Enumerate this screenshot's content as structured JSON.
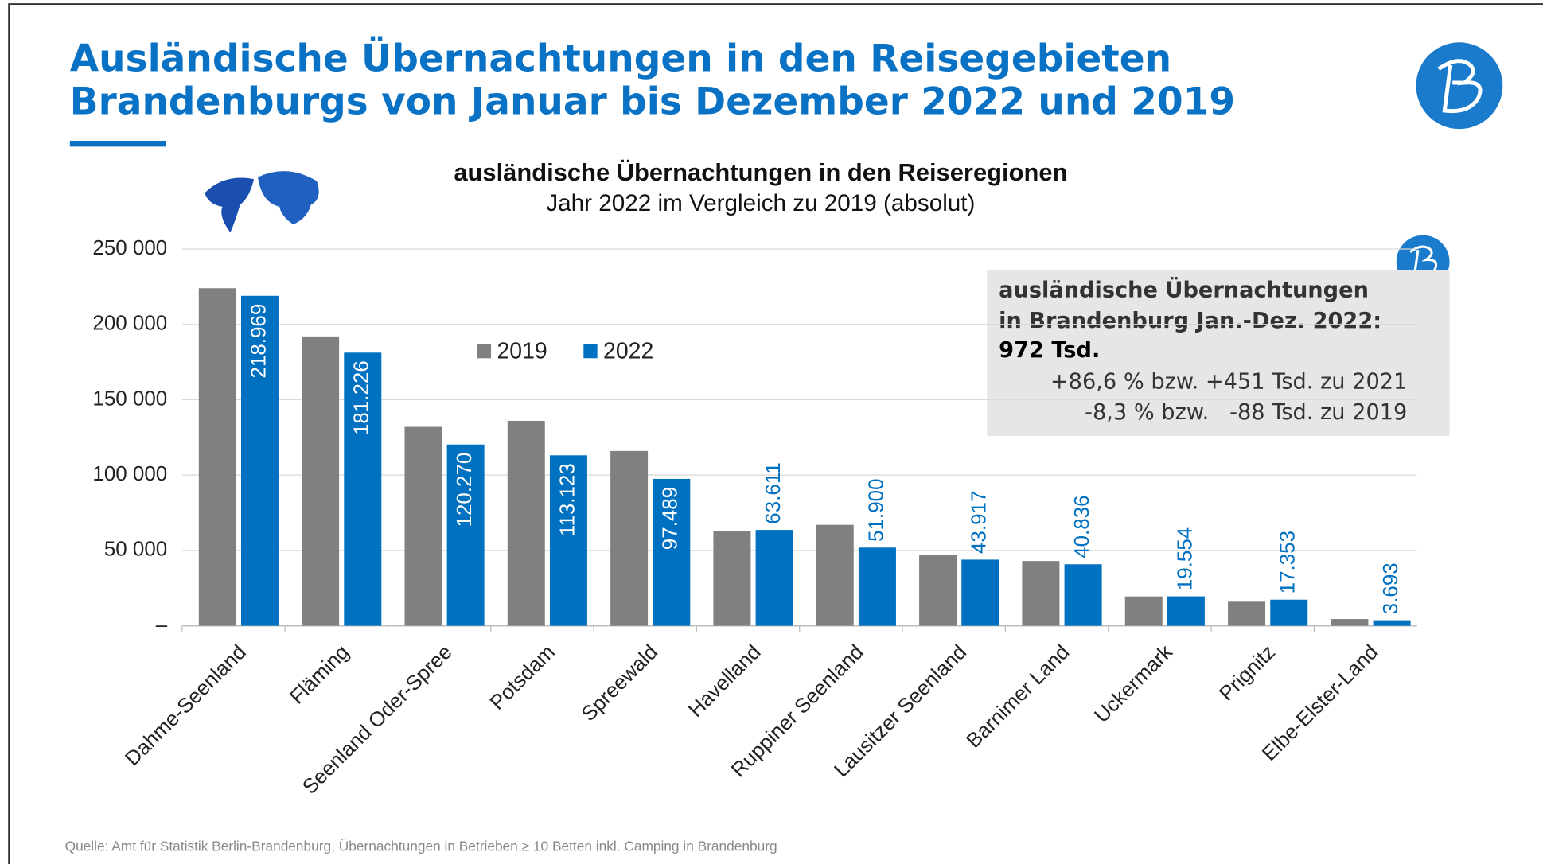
{
  "header": {
    "title_lines": [
      "Ausländische Übernachtungen in den Reisegebieten",
      "Brandenburgs von Januar bis Dezember 2022 und 2019"
    ]
  },
  "chart_data": {
    "type": "bar",
    "title": "ausländische Übernachtungen in den Reiseregionen",
    "subtitle": "Jahr 2022 im Vergleich zu 2019 (absolut)",
    "categories": [
      "Dahme-Seenland",
      "Fläming",
      "Seenland Oder-Spree",
      "Potsdam",
      "Spreewald",
      "Havelland",
      "Ruppiner Seenland",
      "Lausitzer Seenland",
      "Barnimer Land",
      "Uckermark",
      "Prignitz",
      "Elbe-Elster-Land"
    ],
    "series": [
      {
        "name": "2019",
        "color": "#808080",
        "values": [
          224000,
          192000,
          132000,
          136000,
          116000,
          63000,
          67000,
          47000,
          43000,
          19500,
          16000,
          4500
        ]
      },
      {
        "name": "2022",
        "color": "#0070c0",
        "values": [
          218969,
          181226,
          120270,
          113123,
          97489,
          63611,
          51900,
          43917,
          40836,
          19554,
          17353,
          3693
        ],
        "value_labels": [
          "218.969",
          "181.226",
          "120.270",
          "113.123",
          "97.489",
          "63.611",
          "51.900",
          "43.917",
          "40.836",
          "19.554",
          "17.353",
          "3.693"
        ]
      }
    ],
    "ylim": [
      0,
      250000
    ],
    "yticks": [
      {
        "value": 0,
        "label": "–"
      },
      {
        "value": 50000,
        "label": "50 000"
      },
      {
        "value": 100000,
        "label": "100 000"
      },
      {
        "value": 150000,
        "label": "150 000"
      },
      {
        "value": 200000,
        "label": "200 000"
      },
      {
        "value": 250000,
        "label": "250 000"
      }
    ],
    "grid": true
  },
  "info_box": {
    "lines": [
      "ausländische Übernachtungen",
      "in Brandenburg Jan.-Dez. 2022:",
      "972 Tsd.",
      "+86,6 % bzw. +451 Tsd. zu 2021",
      "-8,3 % bzw.   -88 Tsd. zu 2019"
    ]
  },
  "source": "Quelle: Amt für Statistik Berlin-Brandenburg, Übernachtungen in Betrieben ≥ 10 Betten inkl. Camping in Brandenburg"
}
